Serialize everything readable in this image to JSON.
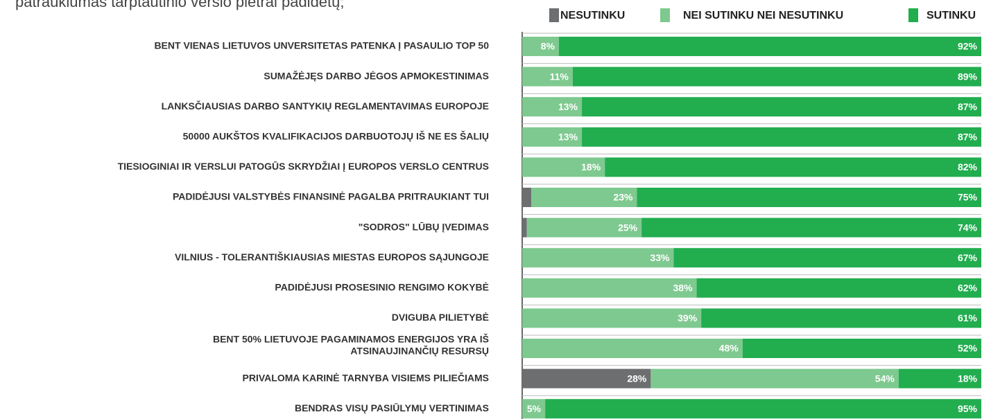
{
  "chart_data": {
    "type": "stacked-bar-horizontal",
    "title": "patrauklumas tarptautinio verslo plėtrai padidėtų;",
    "categories": [
      "BENT VIENAS LIETUVOS UNVERSITETAS PATENKA Į PASAULIO TOP 50",
      "SUMAŽĖJĘS DARBO JĖGOS APMOKESTINIMAS",
      "LANKSČIAUSIAS DARBO SANTYKIŲ REGLAMENTAVIMAS EUROPOJE",
      "50000 AUKŠTOS KVALIFIKACIJOS DARBUOTOJŲ IŠ NE ES ŠALIŲ",
      "TIESIOGINIAI IR VERSLUI PATOGŪS SKRYDŽIAI Į EUROPOS VERSLO CENTRUS",
      "PADIDĖJUSI VALSTYBĖS FINANSINĖ PAGALBA PRITRAUKIANT TUI",
      "\"SODROS\" LŪBŲ ĮVEDIMAS",
      "VILNIUS - TOLERANTIŠKIAUSIAS MIESTAS EUROPOS SĄJUNGOJE",
      "PADIDĖJUSI PROSESINIO RENGIMO KOKYBĖ",
      "DVIGUBA PILIETYBĖ",
      [
        "BENT 50% LIETUVOJE PAGAMINAMOS ENERGIJOS YRA IŠ",
        "ATSINAUJINANČIŲ RESURSŲ"
      ],
      "PRIVALOMA KARINĖ TARNYBA VISIEMS PILIEČIAMS",
      "BENDRAS VISŲ PASIŪLYMŲ VERTINIMAS"
    ],
    "series": [
      {
        "name": "NESUTINKU",
        "color": "#6d6e70",
        "values": [
          0,
          0,
          0,
          0,
          0,
          2,
          1,
          0,
          0,
          0,
          0,
          28,
          0
        ],
        "value_labels": [
          null,
          null,
          null,
          null,
          null,
          null,
          null,
          null,
          null,
          null,
          null,
          "28%",
          null
        ]
      },
      {
        "name": "NEI SUTINKU NEI NESUTINKU",
        "color": "#7ec98f",
        "values": [
          8,
          11,
          13,
          13,
          18,
          23,
          25,
          33,
          38,
          39,
          48,
          54,
          5
        ],
        "value_labels": [
          "8%",
          "11%",
          "13%",
          "13%",
          "18%",
          "23%",
          "25%",
          "33%",
          "38%",
          "39%",
          "48%",
          "54%",
          "5%"
        ]
      },
      {
        "name": "SUTINKU",
        "color": "#22ad4f",
        "values": [
          92,
          89,
          87,
          87,
          82,
          75,
          74,
          67,
          62,
          61,
          52,
          18,
          95
        ],
        "value_labels": [
          "92%",
          "89%",
          "87%",
          "87%",
          "82%",
          "75%",
          "74%",
          "67%",
          "62%",
          "61%",
          "52%",
          "18%",
          "95%"
        ]
      }
    ]
  }
}
